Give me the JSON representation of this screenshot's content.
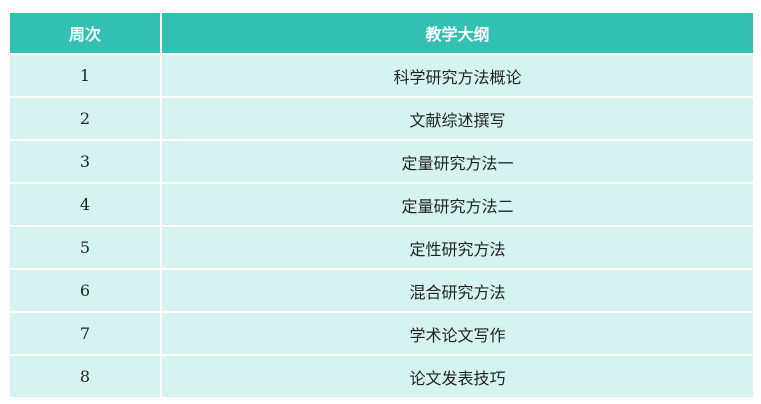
{
  "table": {
    "headers": [
      "周次",
      "教学大纲"
    ],
    "rows": [
      [
        "1",
        "科学研究方法概论"
      ],
      [
        "2",
        "文献综述撰写"
      ],
      [
        "3",
        "定量研究方法一"
      ],
      [
        "4",
        "定量研究方法二"
      ],
      [
        "5",
        "定性研究方法"
      ],
      [
        "6",
        "混合研究方法"
      ],
      [
        "7",
        "学术论文写作"
      ],
      [
        "8",
        "论文发表技巧"
      ]
    ]
  },
  "colors": {
    "header_bg": "#31c0b2",
    "row_bg": "#d5f4f1"
  }
}
